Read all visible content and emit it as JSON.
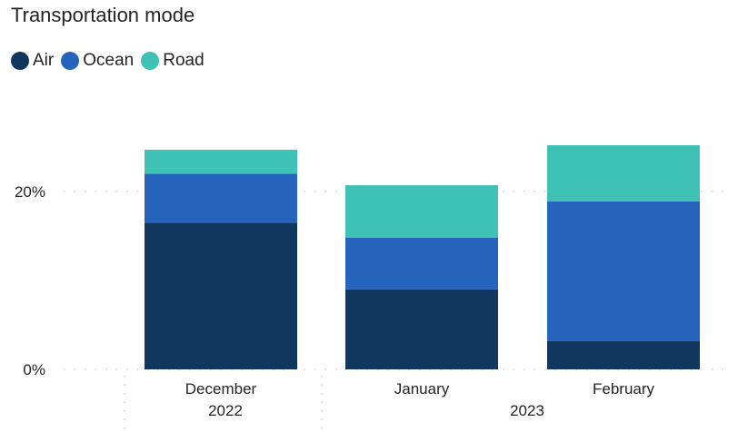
{
  "chart_data": {
    "type": "bar",
    "stacked": true,
    "title": "Transportation mode",
    "categories": [
      "December",
      "January",
      "February"
    ],
    "category_years": [
      "2022",
      "2023",
      "2023"
    ],
    "year_labels": [
      "2022",
      "2023"
    ],
    "series": [
      {
        "name": "Air",
        "color": "#12375f",
        "values": [
          16.5,
          9.0,
          3.2
        ]
      },
      {
        "name": "Ocean",
        "color": "#2563bd",
        "values": [
          5.5,
          5.8,
          15.7
        ]
      },
      {
        "name": "Road",
        "color": "#3fc1b5",
        "values": [
          2.7,
          5.9,
          6.3
        ]
      }
    ],
    "y_ticks": [
      {
        "value": 0,
        "label": "0%"
      },
      {
        "value": 20,
        "label": "20%"
      }
    ],
    "ylim": [
      0,
      25
    ],
    "grid": true,
    "legend_position": "top-left"
  }
}
